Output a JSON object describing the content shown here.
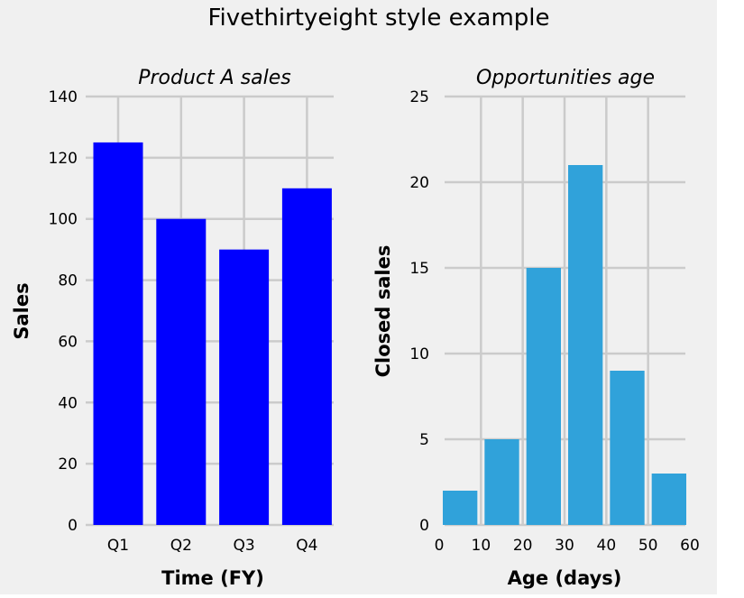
{
  "figure_title": "Fivethirtyeight style example",
  "colors": {
    "background": "#f0f0f0",
    "grid": "#cbcbcb",
    "bar_blue": "#0000ff",
    "hist_blue": "#30a2da"
  },
  "chart_data": [
    {
      "type": "bar",
      "title": "Product A sales",
      "xlabel": "Time (FY)",
      "ylabel": "Sales",
      "categories": [
        "Q1",
        "Q2",
        "Q3",
        "Q4"
      ],
      "values": [
        125,
        100,
        90,
        110
      ],
      "ylim": [
        0,
        140
      ],
      "yticks": [
        0,
        20,
        40,
        60,
        80,
        100,
        120,
        140
      ],
      "grid": true,
      "color": "#0000ff"
    },
    {
      "type": "bar",
      "title": "Opportunities age",
      "xlabel": "Age (days)",
      "ylabel": "Closed sales",
      "bin_edges": [
        0,
        10,
        20,
        30,
        40,
        50,
        60
      ],
      "values": [
        2,
        5,
        15,
        21,
        9,
        3
      ],
      "xlim": [
        0,
        60
      ],
      "ylim": [
        0,
        25
      ],
      "xticks": [
        0,
        10,
        20,
        30,
        40,
        50,
        60
      ],
      "yticks": [
        0,
        5,
        10,
        15,
        20,
        25
      ],
      "grid": true,
      "color": "#30a2da"
    }
  ]
}
